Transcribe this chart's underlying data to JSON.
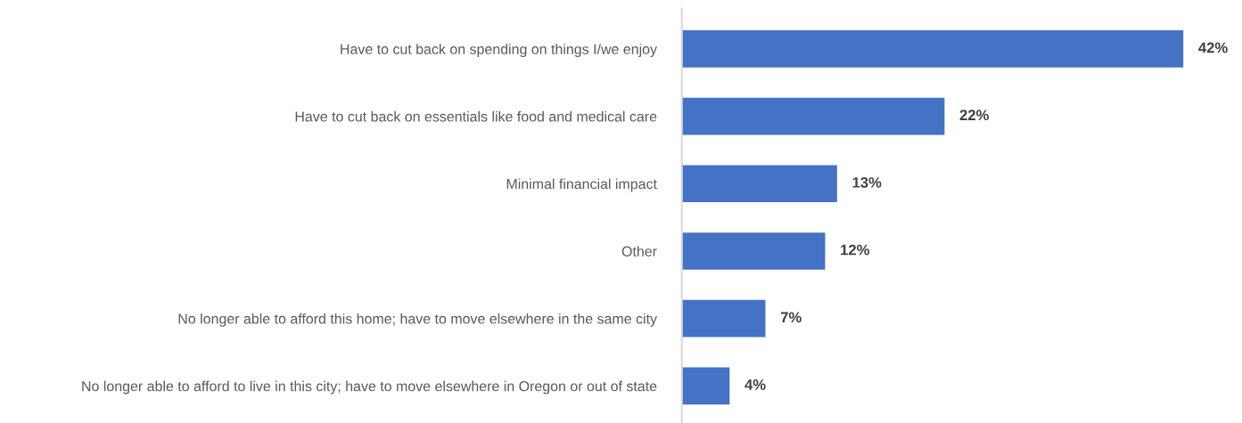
{
  "chart_data": {
    "type": "bar",
    "orientation": "horizontal",
    "categories": [
      "Have to cut back on spending on things I/we enjoy",
      "Have to cut back on essentials like food and medical care",
      "Minimal financial impact",
      "Other",
      "No longer able to afford this home; have to move elsewhere in the same city",
      "No longer able to afford to live in this city; have to move elsewhere in Oregon or out of state"
    ],
    "values": [
      42,
      22,
      13,
      12,
      7,
      4
    ],
    "value_labels": [
      "42%",
      "22%",
      "13%",
      "12%",
      "7%",
      "4%"
    ],
    "color": "#4472c4",
    "relative": false,
    "grid": false,
    "legend": false
  }
}
